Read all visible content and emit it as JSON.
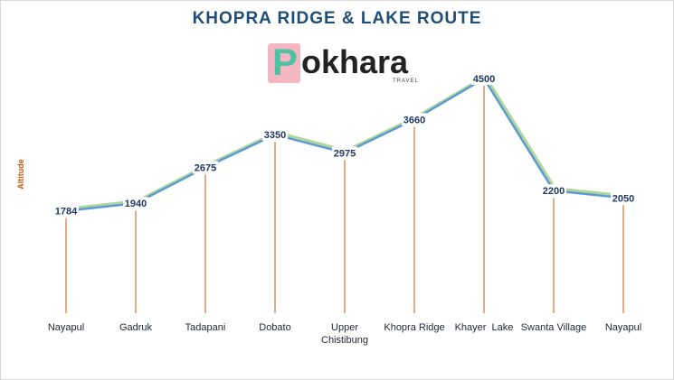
{
  "title": "KHOPRA RIDGE & LAKE ROUTE",
  "logo": {
    "initial": "P",
    "rest": "okhara",
    "tagline": "TRAVEL"
  },
  "colors": {
    "title": "#1f4e79",
    "line_blue": "#5b9bd5",
    "line_green": "#a9d18e",
    "drop_line": "#c55a11",
    "value_label": "#1f3864",
    "axis_label": "#c55a11",
    "logo_pink": "#f4b6c2",
    "logo_teal": "#4fc3a1"
  },
  "chart_data": {
    "type": "line",
    "ylabel": "Altitude",
    "categories": [
      "Nayapul",
      "Gadruk",
      "Tadapani",
      "Dobato",
      "Upper Chistibung",
      "Khopra Ridge",
      "Khayer  Lake",
      "Swanta Village",
      "Nayapul"
    ],
    "values": [
      1784,
      1940,
      2675,
      3350,
      2975,
      3660,
      4500,
      2200,
      2050
    ],
    "data_labels": [
      "1784",
      "1940",
      "2675",
      "3350",
      "2975",
      "3660",
      "4500",
      "2200",
      "2050"
    ],
    "drop_lines": true,
    "grid": false,
    "legend": "none"
  }
}
